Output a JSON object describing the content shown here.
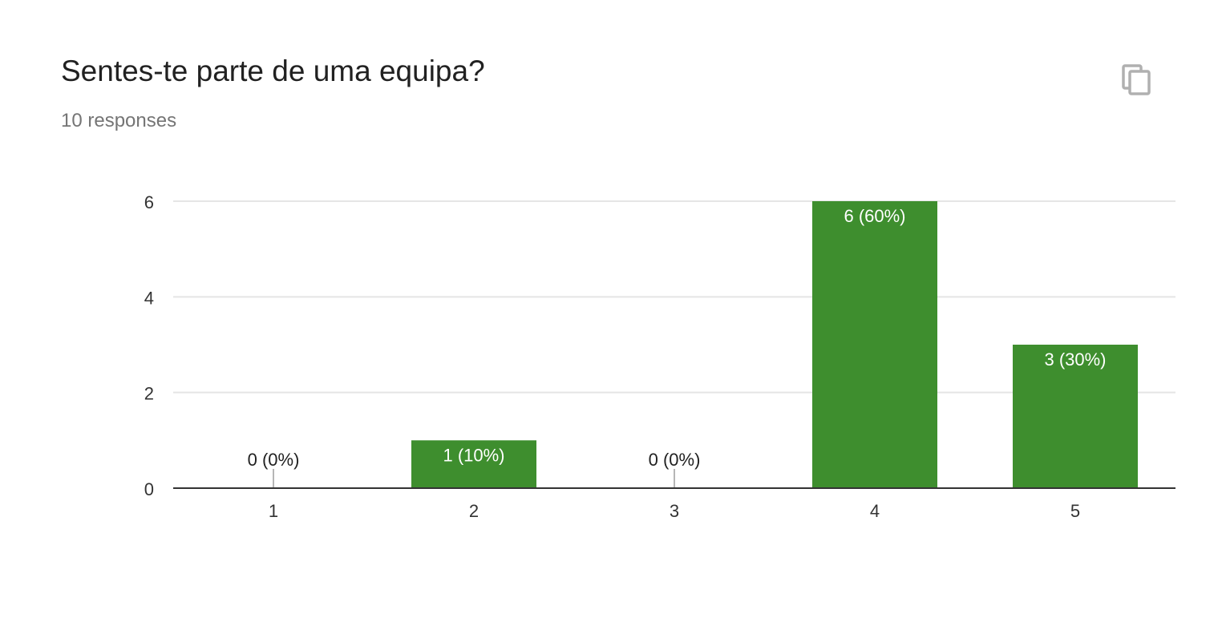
{
  "card": {
    "title": "Sentes-te parte de uma equipa?",
    "response_count": "10 responses",
    "copy_icon": "copy-icon"
  },
  "colors": {
    "bar": "#3e8e2e",
    "gridline": "#e5e5e5",
    "axis": "#333333",
    "label_inside": "#ffffff",
    "label_outside": "#212121",
    "title": "#212121",
    "subtitle": "#757575",
    "icon": "#b0b0b0"
  },
  "chart_data": {
    "type": "bar",
    "title": "",
    "xlabel": "",
    "ylabel": "",
    "categories": [
      "1",
      "2",
      "3",
      "4",
      "5"
    ],
    "values": [
      0,
      1,
      0,
      6,
      3
    ],
    "data_labels": [
      "0 (0%)",
      "1 (10%)",
      "0 (0%)",
      "6 (60%)",
      "3 (30%)"
    ],
    "ylim": [
      0,
      6
    ],
    "yticks": [
      0,
      2,
      4,
      6
    ],
    "grid": true,
    "legend": "none"
  }
}
